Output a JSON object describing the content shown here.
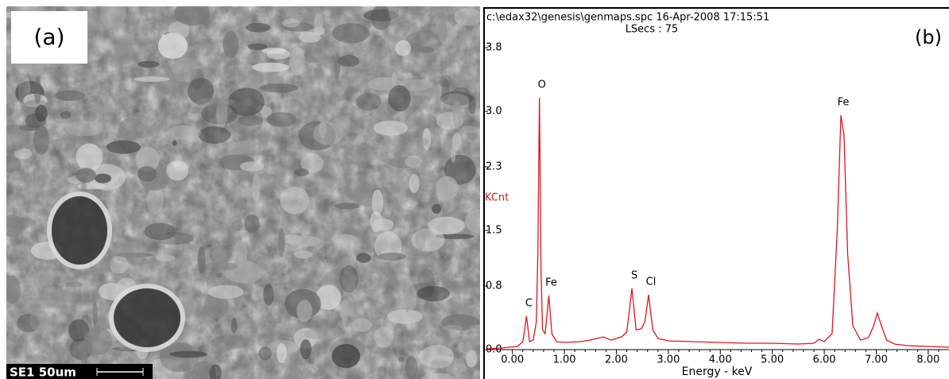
{
  "panel_a": {
    "label": "(a)",
    "scale_text": "SE1 50um"
  },
  "chart_data": {
    "type": "line",
    "header": "c:\\edax32\\genesis\\genmaps.spc  16-Apr-2008  17:15:51",
    "subheader": "LSecs : 75",
    "panel_label": "(b)",
    "ylabel": "KCnt",
    "xlabel": "Energy - keV",
    "color": "#e0141e",
    "xlim": [
      -0.5,
      8.4
    ],
    "ylim": [
      0,
      3.8
    ],
    "xticks": [
      {
        "value": 0,
        "label": "0.00"
      },
      {
        "value": 1,
        "label": "1.00"
      },
      {
        "value": 2,
        "label": "2.00"
      },
      {
        "value": 3,
        "label": "3.00"
      },
      {
        "value": 4,
        "label": "4.00"
      },
      {
        "value": 5,
        "label": "5.00"
      },
      {
        "value": 6,
        "label": "6.00"
      },
      {
        "value": 7,
        "label": "7.00"
      },
      {
        "value": 8,
        "label": "8.00"
      }
    ],
    "yticks": [
      {
        "value": 0,
        "label": "0.0"
      },
      {
        "value": 0.8,
        "label": "0.8"
      },
      {
        "value": 1.5,
        "label": "1.5"
      },
      {
        "value": 2.3,
        "label": "2.3"
      },
      {
        "value": 3,
        "label": "3.0"
      },
      {
        "value": 3.8,
        "label": "3.8"
      }
    ],
    "x": [
      -0.5,
      -0.2,
      0.1,
      0.2,
      0.27,
      0.33,
      0.4,
      0.46,
      0.49,
      0.52,
      0.55,
      0.58,
      0.63,
      0.7,
      0.76,
      0.85,
      1.0,
      1.3,
      1.5,
      1.75,
      1.9,
      2.1,
      2.2,
      2.3,
      2.38,
      2.48,
      2.55,
      2.62,
      2.7,
      2.8,
      3.0,
      3.5,
      4.0,
      4.5,
      5.0,
      5.5,
      5.8,
      5.9,
      6.0,
      6.15,
      6.25,
      6.32,
      6.38,
      6.45,
      6.55,
      6.7,
      6.85,
      6.95,
      7.02,
      7.1,
      7.2,
      7.35,
      7.6,
      8.0,
      8.4
    ],
    "values": [
      0.01,
      0.02,
      0.04,
      0.1,
      0.42,
      0.1,
      0.12,
      0.35,
      1.2,
      3.17,
      1.0,
      0.25,
      0.2,
      0.68,
      0.2,
      0.1,
      0.09,
      0.1,
      0.12,
      0.16,
      0.12,
      0.16,
      0.22,
      0.77,
      0.25,
      0.26,
      0.35,
      0.69,
      0.25,
      0.14,
      0.11,
      0.1,
      0.09,
      0.08,
      0.08,
      0.07,
      0.08,
      0.13,
      0.1,
      0.2,
      1.5,
      2.95,
      2.7,
      1.2,
      0.3,
      0.12,
      0.15,
      0.3,
      0.46,
      0.3,
      0.12,
      0.07,
      0.05,
      0.04,
      0.03
    ],
    "peaks": [
      {
        "label": "C",
        "x": 0.27
      },
      {
        "label": "O",
        "x": 0.52
      },
      {
        "label": "Fe",
        "x": 0.7
      },
      {
        "label": "S",
        "x": 2.3
      },
      {
        "label": "Cl",
        "x": 2.62
      },
      {
        "label": "Fe",
        "x": 6.32
      }
    ]
  }
}
